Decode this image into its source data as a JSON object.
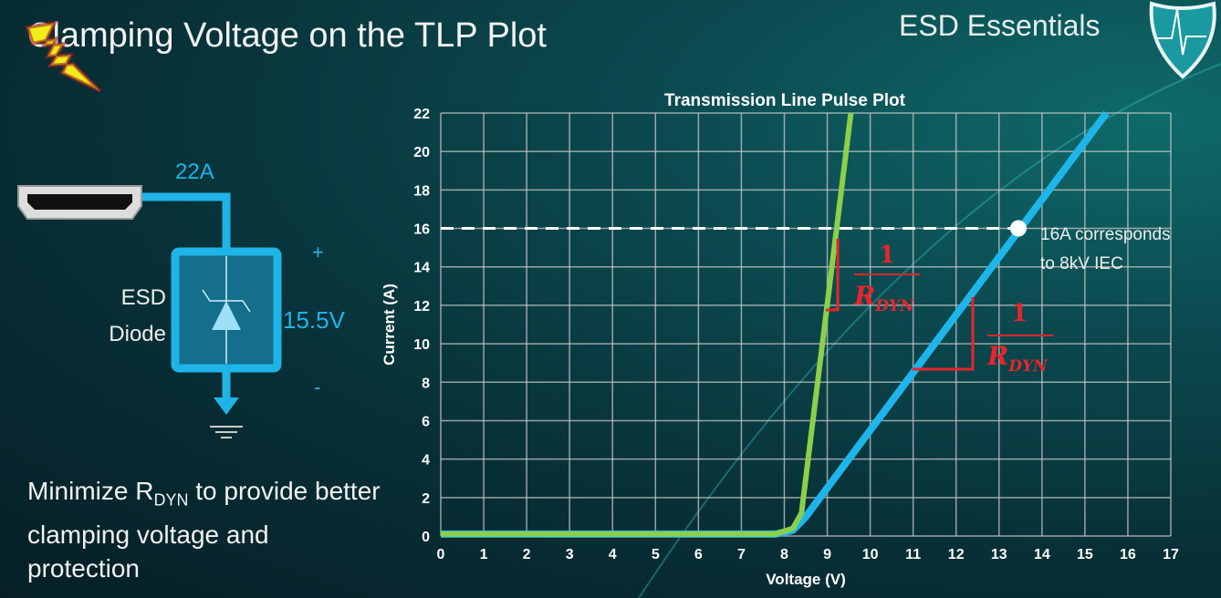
{
  "slide": {
    "title": "Clamping Voltage on the TLP Plot",
    "brand": "ESD Essentials",
    "caption_pre": "Minimize R",
    "caption_sub": "DYN",
    "caption_post": " to provide better clamping voltage and protection"
  },
  "circuit": {
    "current_label": "22A",
    "device_label_1": "ESD",
    "device_label_2": "Diode",
    "voltage_label": "15.5V",
    "plus": "+",
    "minus": "-",
    "wire_color": "#1fb4e6"
  },
  "chart_data": {
    "type": "line",
    "title": "Transmission Line Pulse Plot",
    "xlabel": "Voltage (V)",
    "ylabel": "Current (A)",
    "xlim": [
      0,
      17
    ],
    "ylim": [
      0,
      22
    ],
    "xticks": [
      0,
      1,
      2,
      3,
      4,
      5,
      6,
      7,
      8,
      9,
      10,
      11,
      12,
      13,
      14,
      15,
      16,
      17
    ],
    "yticks": [
      0,
      2,
      4,
      6,
      8,
      10,
      12,
      14,
      16,
      18,
      20,
      22
    ],
    "grid": true,
    "series": [
      {
        "color": "#1eb6ea",
        "x": [
          0,
          7.8,
          8.2,
          8.5,
          15.5
        ],
        "y": [
          0.1,
          0.1,
          0.3,
          1,
          22
        ]
      },
      {
        "color": "#8ccf4a",
        "x": [
          0,
          7.8,
          8.2,
          8.4,
          9.55
        ],
        "y": [
          0.1,
          0.1,
          0.4,
          1.2,
          22
        ]
      }
    ],
    "reference_line": {
      "y": 16,
      "style": "dashed",
      "color": "#ffffff"
    },
    "marker": {
      "x": 13.45,
      "y": 16,
      "color": "#ffffff"
    },
    "annotation": {
      "line1": "16A corresponds",
      "line2": "to 8kV IEC"
    },
    "slope_labels": [
      {
        "numerator": "1",
        "denominator": "R",
        "subscript": "DYN",
        "color": "#e8252b"
      },
      {
        "numerator": "1",
        "denominator": "R",
        "subscript": "DYN",
        "color": "#e8252b"
      }
    ]
  }
}
